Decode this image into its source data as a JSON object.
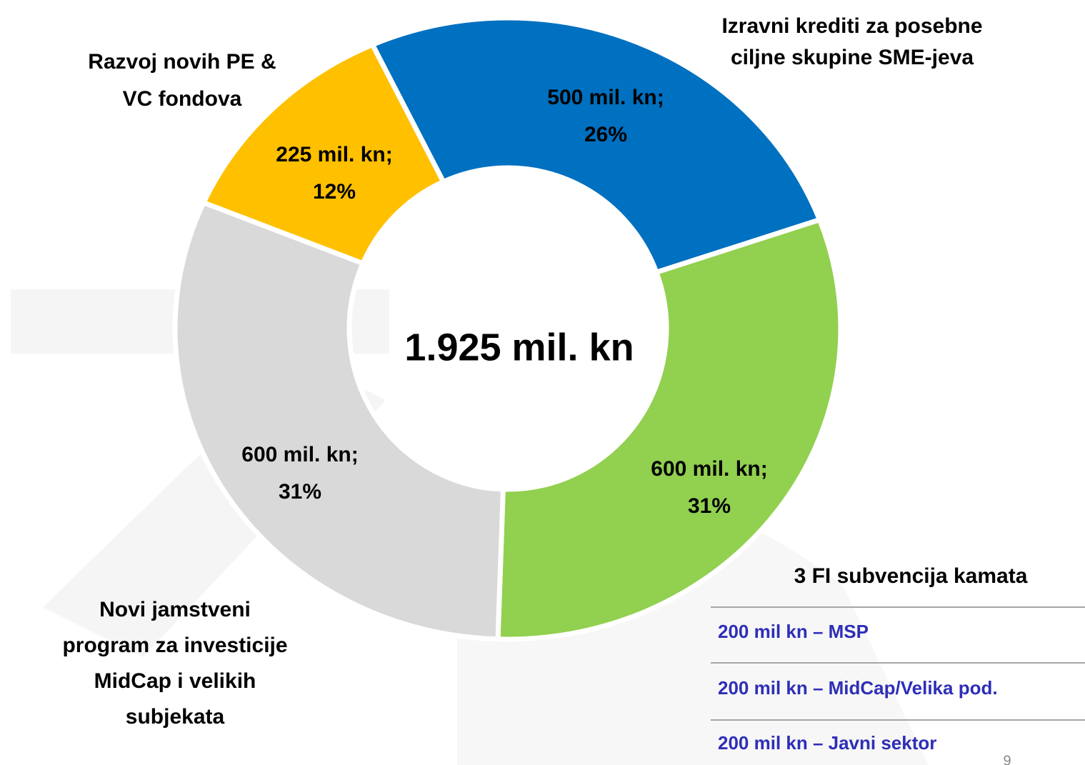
{
  "chart_data": {
    "type": "donut",
    "center_label": "1.925 mil. kn",
    "categories": [
      [
        "Izravni krediti za posebne",
        "ciljne skupine SME-jeva"
      ],
      [
        "3 FI subvencija kamata"
      ],
      [
        "Novi jamstveni",
        "program za investicije",
        "MidCap i velikih",
        "subjekata"
      ],
      [
        "Razvoj novih PE &",
        "VC fondova"
      ]
    ],
    "values": [
      500,
      600,
      600,
      225
    ],
    "value_labels": [
      "500 mil. kn;",
      "600 mil. kn;",
      "600 mil. kn;",
      "225 mil. kn;"
    ],
    "percents": [
      26,
      31,
      31,
      12
    ],
    "percent_labels": [
      "26%",
      "31%",
      "31%",
      "12%"
    ],
    "colors": [
      "#0070C0",
      "#92D050",
      "#D9D9D9",
      "#FFC000"
    ],
    "breakdown": [
      "200 mil kn – MSP",
      "200 mil kn – MidCap/Velika pod.",
      "200 mil kn – Javni sektor"
    ]
  },
  "page_number": "9"
}
